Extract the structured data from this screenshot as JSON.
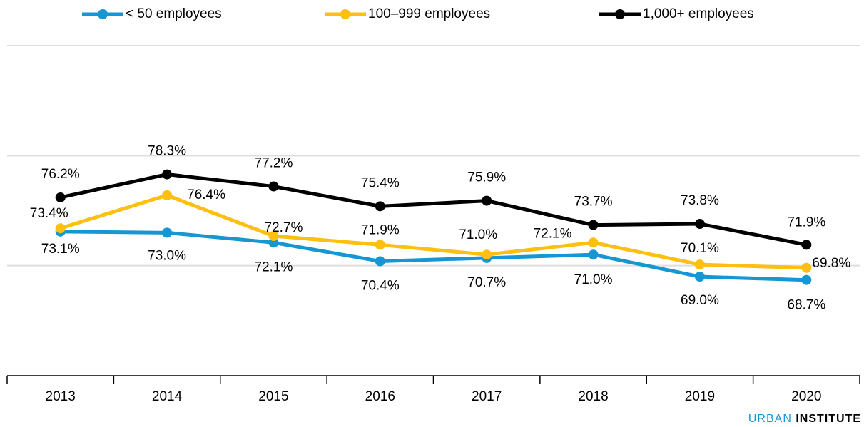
{
  "chart_data": {
    "type": "line",
    "categories": [
      "2013",
      "2014",
      "2015",
      "2016",
      "2017",
      "2018",
      "2019",
      "2020"
    ],
    "series": [
      {
        "name": "< 50 employees",
        "color": "#1696d2",
        "values": [
          73.1,
          73.0,
          72.1,
          70.4,
          70.7,
          71.0,
          69.0,
          68.7
        ],
        "value_labels": [
          "73.1%",
          "73.0%",
          "72.1%",
          "70.4%",
          "70.7%",
          "71.0%",
          "69.0%",
          "68.7%"
        ]
      },
      {
        "name": "100–999 employees",
        "color": "#fdbf11",
        "values": [
          73.4,
          76.4,
          72.7,
          71.9,
          71.0,
          72.1,
          70.1,
          69.8
        ],
        "value_labels": [
          "73.4%",
          "76.4%",
          "72.7%",
          "71.9%",
          "71.0%",
          "72.1%",
          "70.1%",
          "69.8%"
        ]
      },
      {
        "name": "1,000+ employees",
        "color": "#000000",
        "values": [
          76.2,
          78.3,
          77.2,
          75.4,
          75.9,
          73.7,
          73.8,
          71.9
        ],
        "value_labels": [
          "76.2%",
          "78.3%",
          "77.2%",
          "75.4%",
          "75.9%",
          "73.7%",
          "73.8%",
          "71.9%"
        ]
      }
    ],
    "ylim": [
      60,
      90
    ],
    "yticks": [
      60,
      70,
      80,
      90
    ],
    "grid": true,
    "source": {
      "brand": "URBAN",
      "name": "INSTITUTE"
    }
  }
}
